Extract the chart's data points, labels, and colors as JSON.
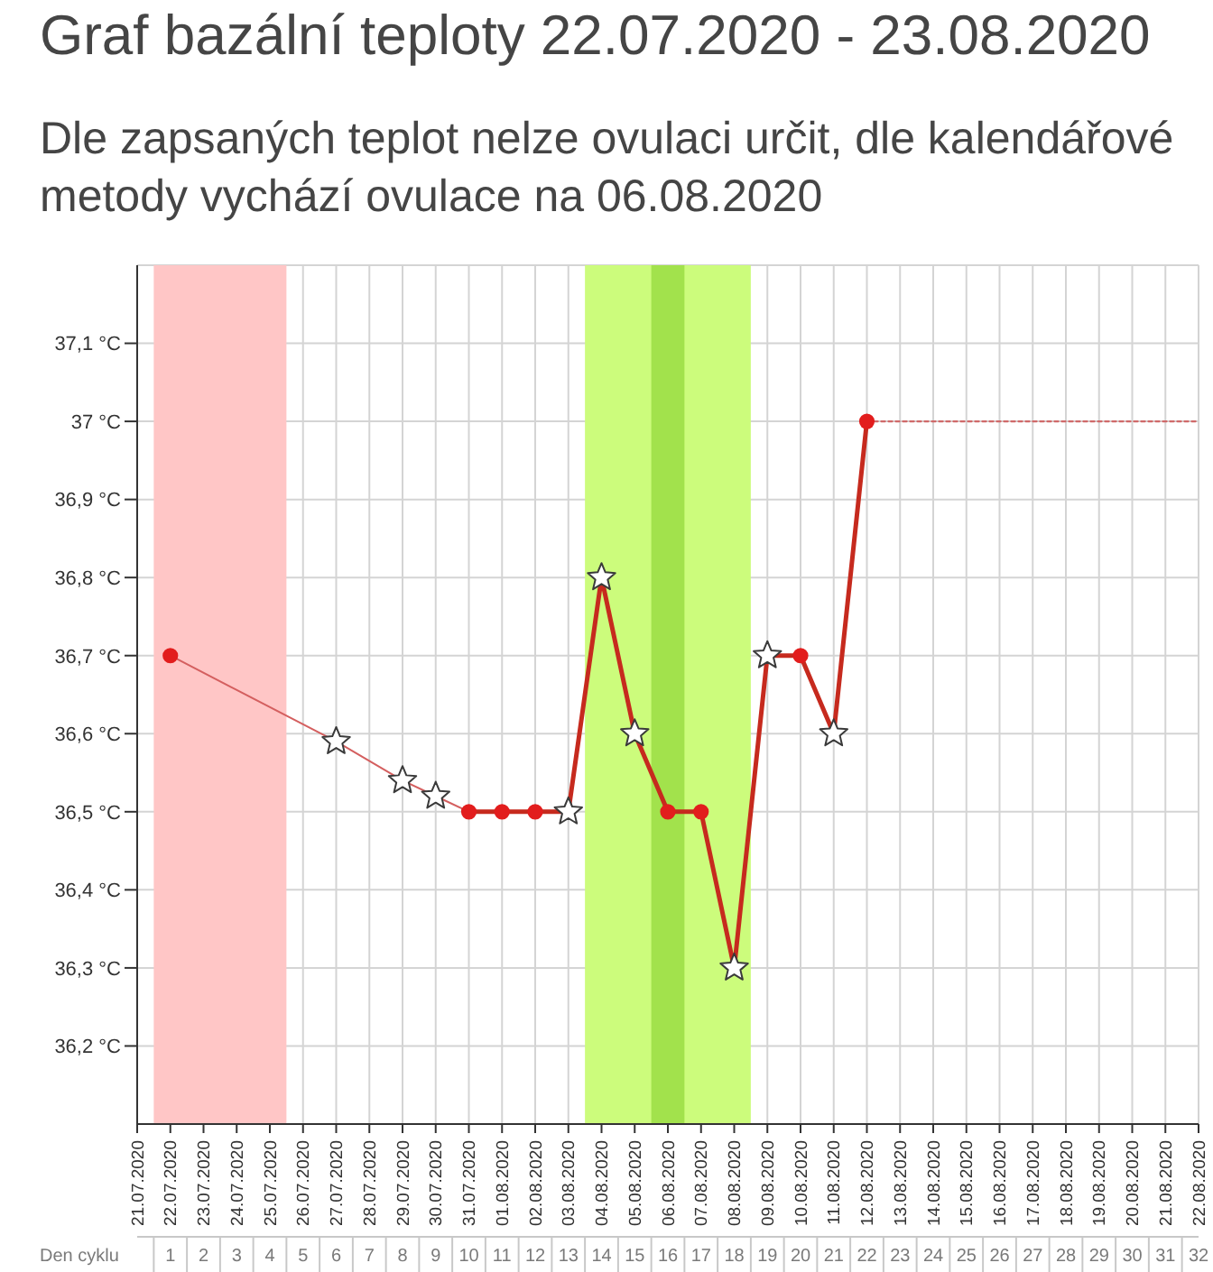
{
  "chart_data": {
    "type": "line",
    "title": "Graf bazální teploty 22.07.2020 - 23.08.2020",
    "subtitle": "Dle zapsaných teplot nelze ovulaci určit, dle kalendářové metody vychází ovulace na 06.08.2020",
    "categories": [
      "21.07.2020",
      "22.07.2020",
      "23.07.2020",
      "24.07.2020",
      "25.07.2020",
      "26.07.2020",
      "27.07.2020",
      "28.07.2020",
      "29.07.2020",
      "30.07.2020",
      "31.07.2020",
      "01.08.2020",
      "02.08.2020",
      "03.08.2020",
      "04.08.2020",
      "05.08.2020",
      "06.08.2020",
      "07.08.2020",
      "08.08.2020",
      "09.08.2020",
      "10.08.2020",
      "11.08.2020",
      "12.08.2020",
      "13.08.2020",
      "14.08.2020",
      "15.08.2020",
      "16.08.2020",
      "17.08.2020",
      "18.08.2020",
      "19.08.2020",
      "20.08.2020",
      "21.08.2020",
      "22.08.2020"
    ],
    "x2label": "Den cyklu",
    "x2lim": [
      0,
      32
    ],
    "x2ticks": [
      1,
      2,
      3,
      4,
      5,
      6,
      7,
      8,
      9,
      10,
      11,
      12,
      13,
      14,
      15,
      16,
      17,
      18,
      19,
      20,
      21,
      22,
      23,
      24,
      25,
      26,
      27,
      28,
      29,
      30,
      31,
      32
    ],
    "ylim": [
      36.1,
      37.2
    ],
    "yticks": [
      {
        "value": 36.2,
        "label": "36,2 °C"
      },
      {
        "value": 36.3,
        "label": "36,3 °C"
      },
      {
        "value": 36.4,
        "label": "36,4 °C"
      },
      {
        "value": 36.5,
        "label": "36,5 °C"
      },
      {
        "value": 36.6,
        "label": "36,6 °C"
      },
      {
        "value": 36.7,
        "label": "36,7 °C"
      },
      {
        "value": 36.8,
        "label": "36,8 °C"
      },
      {
        "value": 36.9,
        "label": "36,9 °C"
      },
      {
        "value": 37,
        "label": "37 °C"
      },
      {
        "value": 37.1,
        "label": "37,1 °C"
      }
    ],
    "grid": true,
    "bands": [
      {
        "axis": "x",
        "from": "22.07.2020",
        "to": "25.07.2020",
        "color": "#ffc6c6"
      },
      {
        "axis": "x",
        "from": "04.08.2020",
        "to": "08.08.2020",
        "color": "#ccfc7c"
      },
      {
        "axis": "x",
        "from": "06.08.2020",
        "to": "06.08.2020",
        "color": "#a2e24c"
      }
    ],
    "series": [
      {
        "type": "line",
        "color": "#d45f5f",
        "values": [
          null,
          36.7,
          null,
          null,
          null,
          null,
          36.59,
          null,
          36.54,
          36.52,
          36.5,
          null,
          null,
          null,
          null,
          null,
          null,
          null,
          null,
          null,
          null,
          null,
          null,
          null,
          null,
          null,
          null,
          null,
          null,
          null,
          null,
          null,
          null
        ]
      },
      {
        "type": "line",
        "color": "#c62a1e",
        "values": [
          null,
          null,
          null,
          null,
          null,
          null,
          null,
          null,
          null,
          null,
          36.5,
          36.5,
          36.5,
          36.5,
          36.8,
          36.6,
          36.5,
          36.5,
          36.3,
          36.7,
          36.7,
          36.6,
          37,
          null,
          null,
          null,
          null,
          null,
          null,
          null,
          null,
          null,
          null
        ]
      },
      {
        "type": "line",
        "color": "#d06a6a",
        "line_style": "dotted",
        "values": [
          null,
          null,
          null,
          null,
          null,
          null,
          null,
          null,
          null,
          null,
          null,
          null,
          null,
          null,
          null,
          null,
          null,
          null,
          null,
          null,
          null,
          null,
          37,
          37,
          37,
          37,
          37,
          37,
          37,
          37,
          37,
          37,
          37
        ]
      },
      {
        "type": "scatter",
        "marker": "star",
        "color": "#ffffff",
        "values": [
          null,
          null,
          null,
          null,
          null,
          null,
          36.59,
          null,
          36.54,
          36.52,
          null,
          null,
          null,
          36.5,
          36.8,
          36.6,
          null,
          null,
          36.3,
          36.7,
          null,
          36.6,
          null,
          null,
          null,
          null,
          null,
          null,
          null,
          null,
          null,
          null,
          null
        ]
      },
      {
        "type": "scatter",
        "marker": "circle",
        "color": "#e21d1d",
        "values": [
          null,
          36.7,
          null,
          null,
          null,
          null,
          null,
          null,
          null,
          null,
          36.5,
          36.5,
          36.5,
          null,
          null,
          null,
          36.5,
          36.5,
          null,
          null,
          36.7,
          null,
          37,
          null,
          null,
          null,
          null,
          null,
          null,
          null,
          null,
          null,
          null
        ]
      }
    ]
  }
}
